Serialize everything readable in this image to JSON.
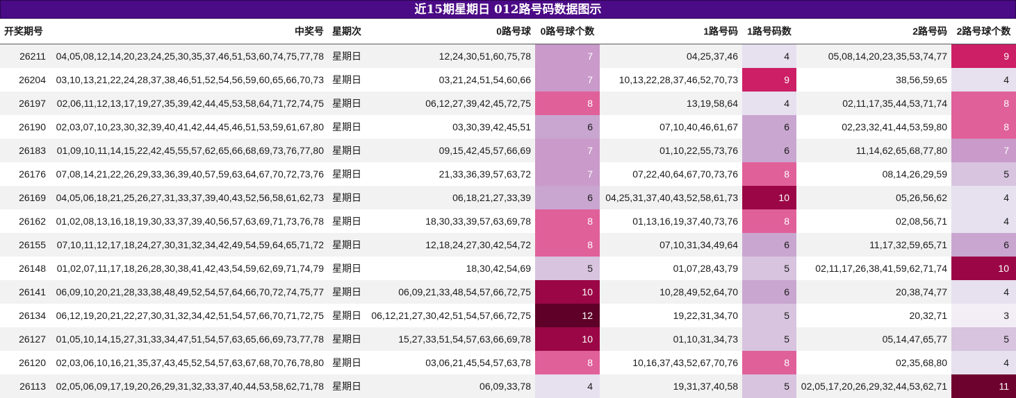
{
  "title": "近15期星期日 012路号码数据图示",
  "headers": [
    "开奖期号",
    "中奖号",
    "星期次",
    "0路号球",
    "0路号球个数",
    "1路号码",
    "1路号码数",
    "2路号码",
    "2路号球个数"
  ],
  "rows": [
    {
      "issue": "26211",
      "numbers": "04,05,08,12,14,20,23,24,25,30,35,37,46,51,53,60,74,75,77,78",
      "weekday": "星期日",
      "r0": "12,24,30,51,60,75,78",
      "c0": 7,
      "r1": "04,25,37,46",
      "c1": 4,
      "r2": "05,08,14,20,23,35,53,74,77",
      "c2": 9
    },
    {
      "issue": "26204",
      "numbers": "03,10,13,21,22,24,28,37,38,46,51,52,54,56,59,60,65,66,70,73",
      "weekday": "星期日",
      "r0": "03,21,24,51,54,60,66",
      "c0": 7,
      "r1": "10,13,22,28,37,46,52,70,73",
      "c1": 9,
      "r2": "38,56,59,65",
      "c2": 4
    },
    {
      "issue": "26197",
      "numbers": "02,06,11,12,13,17,19,27,35,39,42,44,45,53,58,64,71,72,74,75",
      "weekday": "星期日",
      "r0": "06,12,27,39,42,45,72,75",
      "c0": 8,
      "r1": "13,19,58,64",
      "c1": 4,
      "r2": "02,11,17,35,44,53,71,74",
      "c2": 8
    },
    {
      "issue": "26190",
      "numbers": "02,03,07,10,23,30,32,39,40,41,42,44,45,46,51,53,59,61,67,80",
      "weekday": "星期日",
      "r0": "03,30,39,42,45,51",
      "c0": 6,
      "r1": "07,10,40,46,61,67",
      "c1": 6,
      "r2": "02,23,32,41,44,53,59,80",
      "c2": 8
    },
    {
      "issue": "26183",
      "numbers": "01,09,10,11,14,15,22,42,45,55,57,62,65,66,68,69,73,76,77,80",
      "weekday": "星期日",
      "r0": "09,15,42,45,57,66,69",
      "c0": 7,
      "r1": "01,10,22,55,73,76",
      "c1": 6,
      "r2": "11,14,62,65,68,77,80",
      "c2": 7
    },
    {
      "issue": "26176",
      "numbers": "07,08,14,21,22,26,29,33,36,39,40,57,59,63,64,67,70,72,73,76",
      "weekday": "星期日",
      "r0": "21,33,36,39,57,63,72",
      "c0": 7,
      "r1": "07,22,40,64,67,70,73,76",
      "c1": 8,
      "r2": "08,14,26,29,59",
      "c2": 5
    },
    {
      "issue": "26169",
      "numbers": "04,05,06,18,21,25,26,27,31,33,37,39,40,43,52,56,58,61,62,73",
      "weekday": "星期日",
      "r0": "06,18,21,27,33,39",
      "c0": 6,
      "r1": "04,25,31,37,40,43,52,58,61,73",
      "c1": 10,
      "r2": "05,26,56,62",
      "c2": 4
    },
    {
      "issue": "26162",
      "numbers": "01,02,08,13,16,18,19,30,33,37,39,40,56,57,63,69,71,73,76,78",
      "weekday": "星期日",
      "r0": "18,30,33,39,57,63,69,78",
      "c0": 8,
      "r1": "01,13,16,19,37,40,73,76",
      "c1": 8,
      "r2": "02,08,56,71",
      "c2": 4
    },
    {
      "issue": "26155",
      "numbers": "07,10,11,12,17,18,24,27,30,31,32,34,42,49,54,59,64,65,71,72",
      "weekday": "星期日",
      "r0": "12,18,24,27,30,42,54,72",
      "c0": 8,
      "r1": "07,10,31,34,49,64",
      "c1": 6,
      "r2": "11,17,32,59,65,71",
      "c2": 6
    },
    {
      "issue": "26148",
      "numbers": "01,02,07,11,17,18,26,28,30,38,41,42,43,54,59,62,69,71,74,79",
      "weekday": "星期日",
      "r0": "18,30,42,54,69",
      "c0": 5,
      "r1": "01,07,28,43,79",
      "c1": 5,
      "r2": "02,11,17,26,38,41,59,62,71,74",
      "c2": 10
    },
    {
      "issue": "26141",
      "numbers": "06,09,10,20,21,28,33,38,48,49,52,54,57,64,66,70,72,74,75,77",
      "weekday": "星期日",
      "r0": "06,09,21,33,48,54,57,66,72,75",
      "c0": 10,
      "r1": "10,28,49,52,64,70",
      "c1": 6,
      "r2": "20,38,74,77",
      "c2": 4
    },
    {
      "issue": "26134",
      "numbers": "06,12,19,20,21,22,27,30,31,32,34,42,51,54,57,66,70,71,72,75",
      "weekday": "星期日",
      "r0": "06,12,21,27,30,42,51,54,57,66,72,75",
      "c0": 12,
      "r1": "19,22,31,34,70",
      "c1": 5,
      "r2": "20,32,71",
      "c2": 3
    },
    {
      "issue": "26127",
      "numbers": "01,05,10,14,15,27,31,33,34,47,51,54,57,63,65,66,69,73,77,78",
      "weekday": "星期日",
      "r0": "15,27,33,51,54,57,63,66,69,78",
      "c0": 10,
      "r1": "01,10,31,34,73",
      "c1": 5,
      "r2": "05,14,47,65,77",
      "c2": 5
    },
    {
      "issue": "26120",
      "numbers": "02,03,06,10,16,21,35,37,43,45,52,54,57,63,67,68,70,76,78,80",
      "weekday": "星期日",
      "r0": "03,06,21,45,54,57,63,78",
      "c0": 8,
      "r1": "10,16,37,43,52,67,70,76",
      "c1": 8,
      "r2": "02,35,68,80",
      "c2": 4
    },
    {
      "issue": "26113",
      "numbers": "02,05,06,09,17,19,20,26,29,31,32,33,37,40,44,53,58,62,71,78",
      "weekday": "星期日",
      "r0": "06,09,33,78",
      "c0": 4,
      "r1": "19,31,37,40,58",
      "c1": 5,
      "r2": "02,05,17,20,26,29,32,44,53,62,71",
      "c2": 11
    }
  ],
  "heat_colors": {
    "3": "#f3eef6",
    "4": "#e6e0ef",
    "5": "#d8c4df",
    "6": "#c9a6d0",
    "7": "#c99aca",
    "8": "#e0609a",
    "9": "#cc1f66",
    "10": "#9b0746",
    "11": "#6e022f",
    "12": "#5e0027"
  },
  "heat_text_colors": {
    "light": "#1a1a1a",
    "dark": "#ffffff"
  }
}
